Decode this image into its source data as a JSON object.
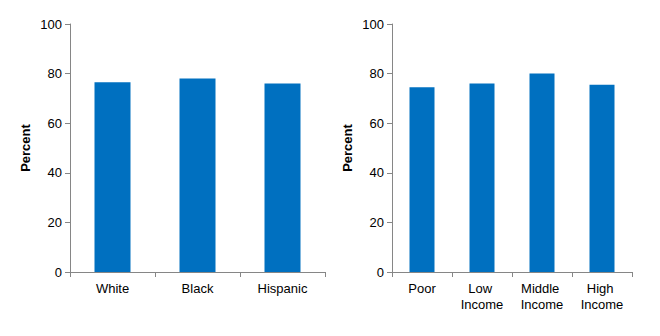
{
  "chart_data": [
    {
      "type": "bar",
      "y_label": "Percent",
      "categories": [
        "White",
        "Black",
        "Hispanic"
      ],
      "values": [
        76.5,
        78,
        76
      ],
      "color": "#0070c0",
      "ylim": [
        0,
        100
      ],
      "yticks": [
        0,
        20,
        40,
        60,
        80,
        100
      ],
      "grid": false
    },
    {
      "type": "bar",
      "y_label": "Percent",
      "categories": [
        "Poor",
        "Low Income",
        "Middle Income",
        "High Income"
      ],
      "values": [
        74.5,
        76,
        80,
        75.5
      ],
      "color": "#0070c0",
      "ylim": [
        0,
        100
      ],
      "yticks": [
        0,
        20,
        40,
        60,
        80,
        100
      ],
      "grid": false
    }
  ]
}
